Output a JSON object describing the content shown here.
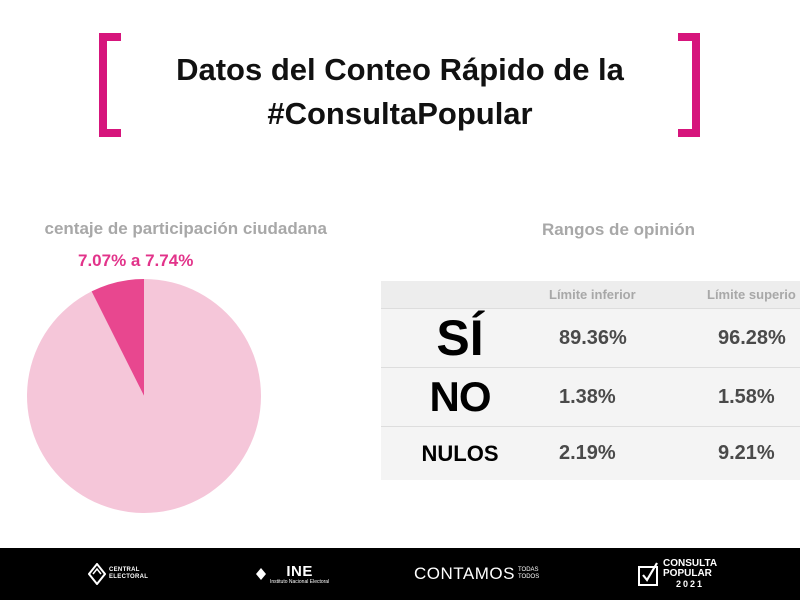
{
  "title": {
    "line1": "Datos del Conteo Rápido de la",
    "line2": "#ConsultaPopular"
  },
  "participation": {
    "heading": "centaje de participación ciudadana",
    "range_label": "7.07% a 7.74%"
  },
  "opinion": {
    "heading": "Rangos de opinión",
    "columns": [
      "Límite inferior",
      "Límite superio"
    ],
    "rows": [
      {
        "option": "SÍ",
        "lower": "89.36%",
        "upper": "96.28%"
      },
      {
        "option": "NO",
        "lower": "1.38%",
        "upper": "1.58%"
      },
      {
        "option": "NULOS",
        "lower": "2.19%",
        "upper": "9.21%"
      }
    ]
  },
  "footer": {
    "central_electoral": [
      "CENTRAL",
      "ELECTORAL"
    ],
    "ine_label": "INE",
    "ine_sub": "Instituto Nacional Electoral",
    "contamos": "CONTAMOS",
    "contamos_sub": [
      "TODAS",
      "TODOS"
    ],
    "consulta": [
      "CONSULTA",
      "POPULAR"
    ],
    "consulta_year": "2021"
  },
  "colors": {
    "accent": "#d6157c",
    "pie_main": "#f5c6d9",
    "pie_slice": "#e8478f",
    "range_text": "#e2338a"
  },
  "chart_data": {
    "type": "pie",
    "title": "",
    "slices": [
      {
        "label": "7.07% a 7.74%",
        "value": 7.4,
        "color": "#e8478f"
      },
      {
        "label": "",
        "value": 92.6,
        "color": "#f5c6d9"
      }
    ],
    "start_angle_deg": 0,
    "direction": "counterclockwise"
  }
}
